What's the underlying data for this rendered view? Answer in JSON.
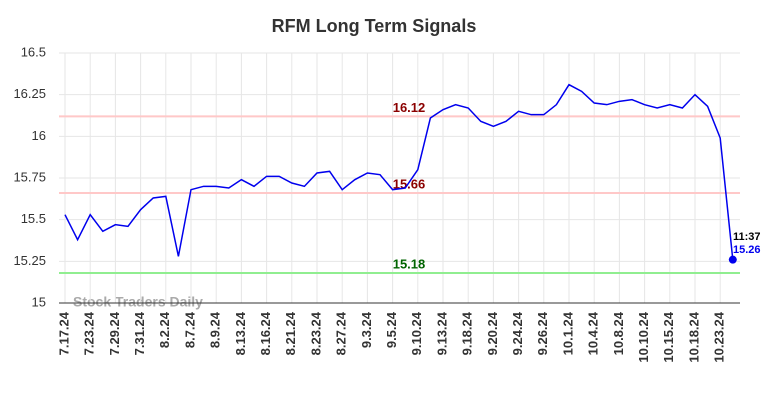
{
  "chart_data": {
    "type": "line",
    "title": "RFM Long Term Signals",
    "categories": [
      "7.17.24",
      null,
      "7.23.24",
      null,
      "7.29.24",
      null,
      "7.31.24",
      null,
      "8.2.24",
      null,
      "8.7.24",
      null,
      "8.9.24",
      null,
      "8.13.24",
      null,
      "8.16.24",
      null,
      "8.21.24",
      null,
      "8.23.24",
      null,
      "8.27.24",
      null,
      "9.3.24",
      null,
      "9.5.24",
      null,
      "9.10.24",
      null,
      "9.13.24",
      null,
      "9.18.24",
      null,
      "9.20.24",
      null,
      "9.24.24",
      null,
      "9.26.24",
      null,
      "10.1.24",
      null,
      "10.4.24",
      null,
      "10.8.24",
      null,
      "10.10.24",
      null,
      "10.15.24",
      null,
      "10.18.24",
      null,
      "10.23.24",
      null
    ],
    "values": [
      15.53,
      15.38,
      15.53,
      15.43,
      15.47,
      15.46,
      15.56,
      15.63,
      15.64,
      15.28,
      15.68,
      15.7,
      15.7,
      15.69,
      15.74,
      15.7,
      15.76,
      15.76,
      15.72,
      15.7,
      15.78,
      15.79,
      15.68,
      15.74,
      15.78,
      15.77,
      15.68,
      15.69,
      15.8,
      16.11,
      16.16,
      16.19,
      16.17,
      16.09,
      16.06,
      16.09,
      16.15,
      16.13,
      16.13,
      16.19,
      16.31,
      16.27,
      16.2,
      16.19,
      16.21,
      16.22,
      16.19,
      16.17,
      16.19,
      16.17,
      16.25,
      16.18,
      15.99,
      15.26
    ],
    "color": "#0000ee",
    "ylim": [
      15,
      16.5
    ],
    "yticks": [
      15,
      15.25,
      15.5,
      15.75,
      16,
      16.25,
      16.5
    ],
    "grid": true,
    "hlines": [
      {
        "value": 16.12,
        "color": "#ffc8c8",
        "label_color": "#8b0000"
      },
      {
        "value": 15.66,
        "color": "#ffc8c8",
        "label_color": "#8b0000"
      },
      {
        "value": 15.18,
        "color": "#90ee90",
        "label_color": "#006400"
      }
    ],
    "last_time": "11:37",
    "watermark": "Stock Traders Daily"
  }
}
